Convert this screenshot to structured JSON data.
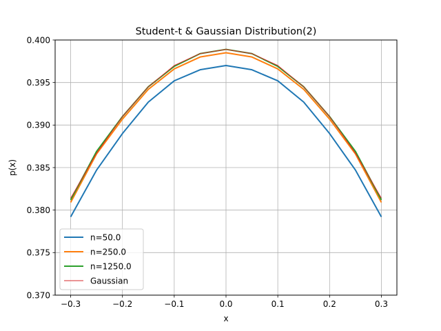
{
  "chart_data": {
    "type": "line",
    "title": "Student-t & Gaussian Distribution(2)",
    "xlabel": "x",
    "ylabel": "p(x)",
    "xlim": [
      -0.33,
      0.33
    ],
    "ylim": [
      0.37,
      0.4
    ],
    "xticks": [
      -0.3,
      -0.2,
      -0.1,
      0.0,
      0.1,
      0.2,
      0.3
    ],
    "xtick_labels": [
      "−0.3",
      "−0.2",
      "−0.1",
      "0.0",
      "0.1",
      "0.2",
      "0.3"
    ],
    "yticks": [
      0.37,
      0.375,
      0.38,
      0.385,
      0.39,
      0.395,
      0.4
    ],
    "ytick_labels": [
      "0.370",
      "0.375",
      "0.380",
      "0.385",
      "0.390",
      "0.395",
      "0.400"
    ],
    "grid": true,
    "legend_position": "lower-left",
    "x": [
      -0.3,
      -0.25,
      -0.2,
      -0.15,
      -0.1,
      -0.05,
      0.0,
      0.05,
      0.1,
      0.15,
      0.2,
      0.25,
      0.3
    ],
    "series": [
      {
        "name": "n=50.0",
        "color": "#1f77b4",
        "values": [
          0.3792,
          0.3847,
          0.389,
          0.3927,
          0.3952,
          0.3965,
          0.397,
          0.3965,
          0.3952,
          0.3927,
          0.389,
          0.3847,
          0.3792
        ]
      },
      {
        "name": "n=250.0",
        "color": "#ff7f0e",
        "values": [
          0.3809,
          0.3866,
          0.3907,
          0.3942,
          0.3966,
          0.398,
          0.3985,
          0.398,
          0.3966,
          0.3942,
          0.3907,
          0.3866,
          0.3809
        ]
      },
      {
        "name": "n=1250.0",
        "color": "#2ca02c",
        "values": [
          0.3812,
          0.3869,
          0.391,
          0.3945,
          0.3969,
          0.3984,
          0.3989,
          0.3984,
          0.3969,
          0.3945,
          0.391,
          0.3869,
          0.3812
        ]
      },
      {
        "name": "Gaussian",
        "color": "#d62728",
        "values": [
          0.3814,
          0.3867,
          0.391,
          0.3945,
          0.397,
          0.3984,
          0.3989,
          0.3984,
          0.397,
          0.3945,
          0.391,
          0.3867,
          0.3814
        ]
      }
    ]
  }
}
